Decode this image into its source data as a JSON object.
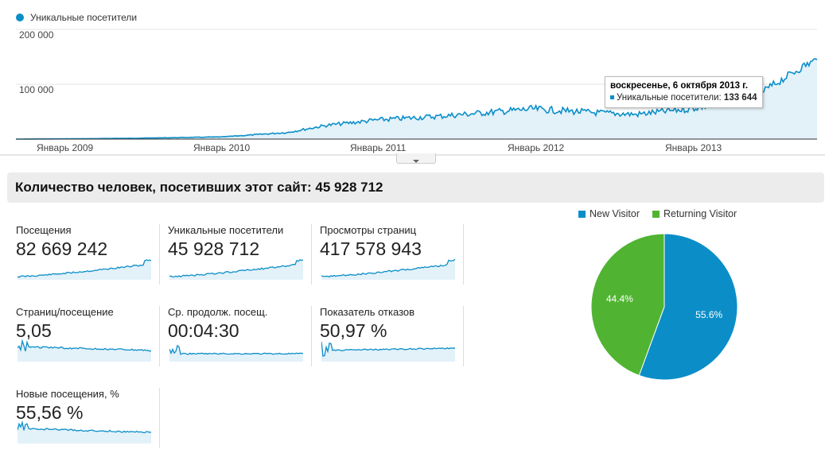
{
  "main_chart": {
    "legend_label": "Уникальные посетители",
    "y_ticks": [
      "200 000",
      "100 000"
    ],
    "x_ticks": [
      "Январь 2009",
      "Январь 2010",
      "Январь 2011",
      "Январь 2012",
      "Январь 2013"
    ],
    "tooltip_title": "воскресенье, 6 октября 2013 г.",
    "tooltip_series": "Уникальные посетители:",
    "tooltip_value": "133 644",
    "line_color": "#0b8ec8",
    "fill_color": "#e3f1f9"
  },
  "summary": {
    "text": "Количество человек, посетивших этот сайт: 45 928 712"
  },
  "metrics": [
    {
      "label": "Посещения",
      "value": "82 669 242"
    },
    {
      "label": "Уникальные посетители",
      "value": "45 928 712"
    },
    {
      "label": "Просмотры страниц",
      "value": "417 578 943"
    },
    {
      "label": "Страниц/посещение",
      "value": "5,05"
    },
    {
      "label": "Ср. продолж. посещ.",
      "value": "00:04:30"
    },
    {
      "label": "Показатель отказов",
      "value": "50,97 %"
    },
    {
      "label": "Новые посещения, %",
      "value": "55,56 %"
    }
  ],
  "pie": {
    "legend": [
      {
        "name": "New Visitor",
        "color": "#0b8ec8"
      },
      {
        "name": "Returning Visitor",
        "color": "#50b432"
      }
    ],
    "new_label": "55.6%",
    "returning_label": "44.4%"
  },
  "chart_data": [
    {
      "type": "area",
      "title": "",
      "series": [
        {
          "name": "Уникальные посетители"
        }
      ],
      "x": [
        "2008-09",
        "2009-01",
        "2009-06",
        "2010-01",
        "2010-06",
        "2010-09",
        "2011-01",
        "2011-06",
        "2012-01",
        "2012-06",
        "2012-09",
        "2013-01",
        "2013-06",
        "2013-10",
        "2013-11"
      ],
      "y": [
        0,
        500,
        1500,
        4000,
        12000,
        25000,
        35000,
        42000,
        55000,
        48000,
        45000,
        55000,
        75000,
        133644,
        145000
      ],
      "ylim": [
        0,
        200000
      ]
    },
    {
      "type": "pie",
      "categories": [
        "New Visitor",
        "Returning Visitor"
      ],
      "values": [
        55.6,
        44.4
      ]
    }
  ]
}
